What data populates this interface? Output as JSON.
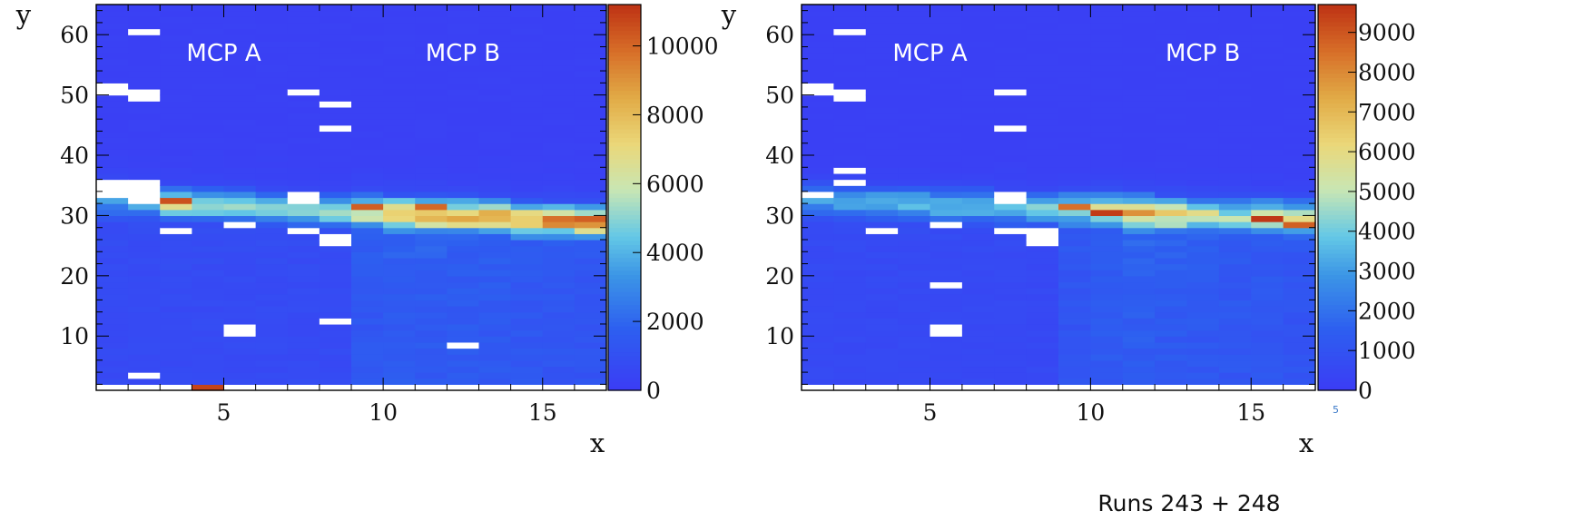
{
  "caption": "Runs 243 + 248",
  "corner_mark": "5",
  "chart_data": [
    {
      "type": "heatmap",
      "xlabel": "x",
      "ylabel": "y",
      "xlim": [
        1,
        17
      ],
      "ylim": [
        1,
        65
      ],
      "x_ticks": [
        5,
        10,
        15
      ],
      "y_ticks": [
        10,
        20,
        30,
        40,
        50,
        60
      ],
      "zlim": [
        0,
        11200
      ],
      "colorbar_ticks": [
        0,
        2000,
        4000,
        6000,
        8000,
        10000
      ],
      "annotations": [
        {
          "text": "MCP A",
          "x": 5,
          "y": 57
        },
        {
          "text": "MCP B",
          "x": 12.5,
          "y": 57
        }
      ],
      "band": {
        "center_start": 32.5,
        "center_end": 29,
        "peak_x": [
          1,
          2,
          3,
          4,
          5,
          6,
          7,
          8,
          9,
          10,
          11,
          12,
          13,
          14,
          15,
          16,
          17
        ],
        "peak_value": [
          3500,
          4200,
          6500,
          5500,
          5200,
          4800,
          5200,
          6000,
          6500,
          8500,
          8200,
          8200,
          8000,
          8500,
          8800,
          9500,
          9000
        ],
        "lower_level": [
          900,
          900,
          900,
          900,
          900,
          900,
          900,
          900,
          1700,
          1900,
          1900,
          1850,
          1800,
          1700,
          1600,
          1550,
          1500
        ],
        "background": 250
      },
      "hot_cells": [
        {
          "x": 3.5,
          "y": 32.5,
          "value": 10500
        },
        {
          "x": 4.5,
          "y": 1.5,
          "value": 10800
        },
        {
          "x": 9.5,
          "y": 31.5,
          "value": 10200
        },
        {
          "x": 11.5,
          "y": 31.5,
          "value": 10000
        },
        {
          "x": 15.5,
          "y": 29.5,
          "value": 9800
        },
        {
          "x": 16.5,
          "y": 28.5,
          "value": 9000
        }
      ],
      "empty_cells": [
        {
          "x": 1.5,
          "y": 51.5
        },
        {
          "x": 1.5,
          "y": 50.5
        },
        {
          "x": 2.5,
          "y": 60.5
        },
        {
          "x": 2.5,
          "y": 50.5
        },
        {
          "x": 2.5,
          "y": 49.5
        },
        {
          "x": 7.5,
          "y": 50.5
        },
        {
          "x": 8.5,
          "y": 48.5
        },
        {
          "x": 8.5,
          "y": 44.5
        },
        {
          "x": 1.5,
          "y": 35.5
        },
        {
          "x": 1.5,
          "y": 34.5
        },
        {
          "x": 1.5,
          "y": 33.5
        },
        {
          "x": 2.5,
          "y": 35.5
        },
        {
          "x": 2.5,
          "y": 34.5
        },
        {
          "x": 2.5,
          "y": 33.5
        },
        {
          "x": 2.5,
          "y": 32.5
        },
        {
          "x": 7.5,
          "y": 33.5
        },
        {
          "x": 7.5,
          "y": 32.5
        },
        {
          "x": 3.5,
          "y": 27.5
        },
        {
          "x": 5.5,
          "y": 28.5
        },
        {
          "x": 7.5,
          "y": 27.5
        },
        {
          "x": 8.5,
          "y": 26.5
        },
        {
          "x": 8.5,
          "y": 25.5
        },
        {
          "x": 5.5,
          "y": 11.5
        },
        {
          "x": 5.5,
          "y": 10.5
        },
        {
          "x": 8.5,
          "y": 12.5
        },
        {
          "x": 12.5,
          "y": 8.5
        },
        {
          "x": 2.5,
          "y": 3.5
        },
        {
          "x": 1.5,
          "y": 1.5
        },
        {
          "x": 2.5,
          "y": 1.5
        },
        {
          "x": 3.5,
          "y": 1.5
        },
        {
          "x": 5.5,
          "y": 1.5
        },
        {
          "x": 6.5,
          "y": 1.5
        },
        {
          "x": 7.5,
          "y": 1.5
        },
        {
          "x": 8.5,
          "y": 1.5
        },
        {
          "x": 9.5,
          "y": 1.5
        },
        {
          "x": 10.5,
          "y": 1.5
        },
        {
          "x": 11.5,
          "y": 1.5
        },
        {
          "x": 12.5,
          "y": 1.5
        },
        {
          "x": 13.5,
          "y": 1.5
        },
        {
          "x": 14.5,
          "y": 1.5
        },
        {
          "x": 15.5,
          "y": 1.5
        },
        {
          "x": 16.5,
          "y": 1.5
        }
      ]
    },
    {
      "type": "heatmap",
      "xlabel": "x",
      "ylabel": "y",
      "xlim": [
        1,
        17
      ],
      "ylim": [
        1,
        65
      ],
      "x_ticks": [
        5,
        10,
        15
      ],
      "y_ticks": [
        10,
        20,
        30,
        40,
        50,
        60
      ],
      "zlim": [
        0,
        9700
      ],
      "colorbar_ticks": [
        0,
        1000,
        2000,
        3000,
        4000,
        5000,
        6000,
        7000,
        8000,
        9000
      ],
      "annotations": [
        {
          "text": "MCP A",
          "x": 5,
          "y": 57
        },
        {
          "text": "MCP B",
          "x": 13.5,
          "y": 57
        }
      ],
      "band": {
        "center_start": 32.5,
        "center_end": 29.5,
        "peak_x": [
          1,
          2,
          3,
          4,
          5,
          6,
          7,
          8,
          9,
          10,
          11,
          12,
          13,
          14,
          15,
          16,
          17
        ],
        "peak_value": [
          3000,
          3300,
          3800,
          4000,
          3800,
          3800,
          3900,
          4300,
          4800,
          6000,
          7000,
          6600,
          5200,
          5000,
          5800,
          6500,
          6500
        ],
        "lower_level": [
          700,
          700,
          700,
          700,
          700,
          700,
          700,
          700,
          1300,
          1600,
          1700,
          1600,
          1500,
          1450,
          1400,
          1300,
          1250
        ],
        "background": 200
      },
      "hot_cells": [
        {
          "x": 9.5,
          "y": 31.5,
          "value": 8500
        },
        {
          "x": 10.5,
          "y": 30.5,
          "value": 9500
        },
        {
          "x": 15.5,
          "y": 29.5,
          "value": 9600
        },
        {
          "x": 16.5,
          "y": 28.5,
          "value": 8800
        }
      ],
      "empty_cells": [
        {
          "x": 1.5,
          "y": 51.5
        },
        {
          "x": 1.5,
          "y": 50.5
        },
        {
          "x": 2.5,
          "y": 60.5
        },
        {
          "x": 2.5,
          "y": 50.5
        },
        {
          "x": 2.5,
          "y": 49.5
        },
        {
          "x": 7.5,
          "y": 50.5
        },
        {
          "x": 7.5,
          "y": 44.5
        },
        {
          "x": 2.5,
          "y": 37.5
        },
        {
          "x": 2.5,
          "y": 35.5
        },
        {
          "x": 1.5,
          "y": 33.5
        },
        {
          "x": 7.5,
          "y": 33.5
        },
        {
          "x": 7.5,
          "y": 32.5
        },
        {
          "x": 3.5,
          "y": 27.5
        },
        {
          "x": 5.5,
          "y": 28.5
        },
        {
          "x": 7.5,
          "y": 27.5
        },
        {
          "x": 8.5,
          "y": 27.5
        },
        {
          "x": 8.5,
          "y": 26.5
        },
        {
          "x": 8.5,
          "y": 25.5
        },
        {
          "x": 5.5,
          "y": 18.5
        },
        {
          "x": 5.5,
          "y": 11.5
        },
        {
          "x": 5.5,
          "y": 10.5
        },
        {
          "x": 1.5,
          "y": 1.5
        },
        {
          "x": 2.5,
          "y": 1.5
        },
        {
          "x": 3.5,
          "y": 1.5
        },
        {
          "x": 4.5,
          "y": 1.5
        },
        {
          "x": 5.5,
          "y": 1.5
        },
        {
          "x": 6.5,
          "y": 1.5
        },
        {
          "x": 7.5,
          "y": 1.5
        },
        {
          "x": 8.5,
          "y": 1.5
        },
        {
          "x": 9.5,
          "y": 1.5
        },
        {
          "x": 10.5,
          "y": 1.5
        },
        {
          "x": 11.5,
          "y": 1.5
        },
        {
          "x": 12.5,
          "y": 1.5
        },
        {
          "x": 13.5,
          "y": 1.5
        },
        {
          "x": 14.5,
          "y": 1.5
        },
        {
          "x": 15.5,
          "y": 1.5
        },
        {
          "x": 16.5,
          "y": 1.5
        }
      ]
    }
  ]
}
